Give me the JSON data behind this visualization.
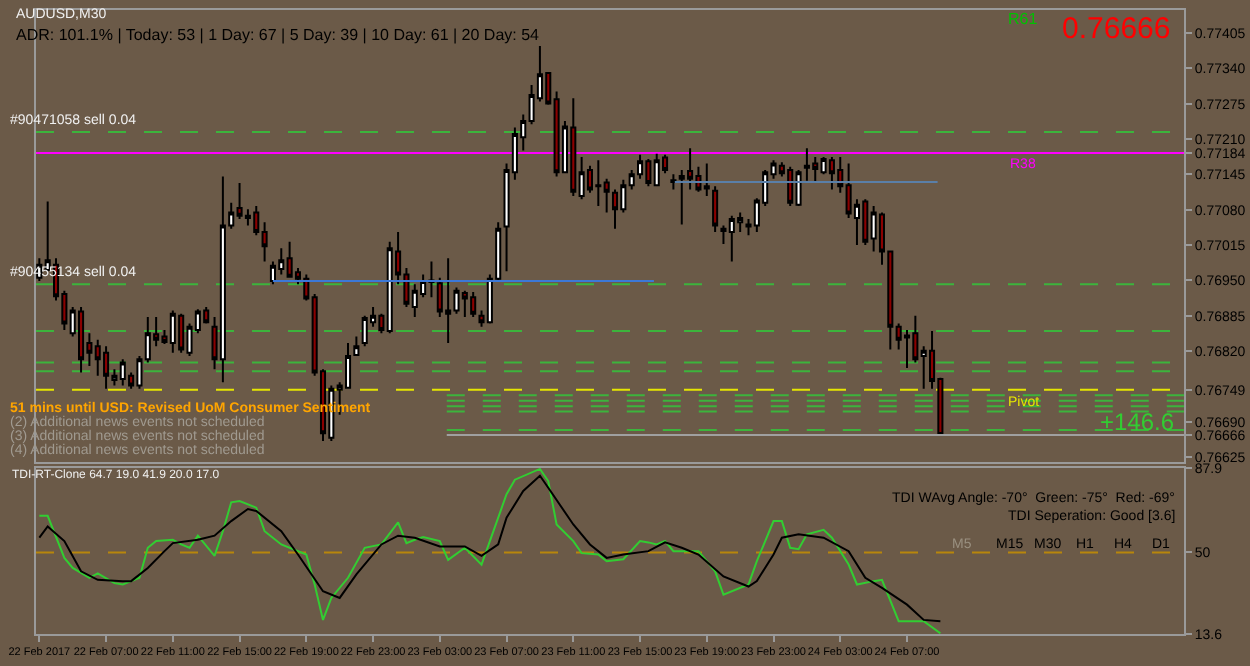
{
  "chart_data": [
    {
      "type": "candlestick",
      "title": "AUDUSD,M30",
      "subtitle": "ADR: 101.1% | Today: 53 | 1 Day: 67 | 5 Day: 39 | 10 Day: 61 | 20 Day: 54",
      "x": [
        "2017-02-22T03:00",
        "2017-02-22T03:30",
        "2017-02-22T04:00",
        "2017-02-22T04:30",
        "2017-02-22T05:00",
        "2017-02-22T05:30",
        "2017-02-22T06:00",
        "2017-02-22T06:30",
        "2017-02-22T07:00",
        "2017-02-22T07:30",
        "2017-02-22T08:00",
        "2017-02-22T08:30",
        "2017-02-22T09:00",
        "2017-02-22T09:30",
        "2017-02-22T10:00",
        "2017-02-22T10:30",
        "2017-02-22T11:00",
        "2017-02-22T11:30",
        "2017-02-22T12:00",
        "2017-02-22T12:30",
        "2017-02-22T13:00",
        "2017-02-22T13:30",
        "2017-02-22T14:00",
        "2017-02-22T14:30",
        "2017-02-22T15:00",
        "2017-02-22T15:30",
        "2017-02-22T16:00",
        "2017-02-22T16:30",
        "2017-02-22T17:00",
        "2017-02-22T17:30",
        "2017-02-22T18:00",
        "2017-02-22T18:30",
        "2017-02-22T19:00",
        "2017-02-22T19:30",
        "2017-02-22T20:00",
        "2017-02-22T20:30",
        "2017-02-22T21:00",
        "2017-02-22T21:30",
        "2017-02-22T22:00",
        "2017-02-22T22:30",
        "2017-02-22T23:00",
        "2017-02-22T23:30",
        "2017-02-23T00:00",
        "2017-02-23T00:30",
        "2017-02-23T01:00",
        "2017-02-23T01:30",
        "2017-02-23T02:00",
        "2017-02-23T02:30",
        "2017-02-23T03:00",
        "2017-02-23T03:30",
        "2017-02-23T04:00",
        "2017-02-23T04:30",
        "2017-02-23T05:00",
        "2017-02-23T05:30",
        "2017-02-23T06:00",
        "2017-02-23T06:30",
        "2017-02-23T07:00",
        "2017-02-23T07:30",
        "2017-02-23T08:00",
        "2017-02-23T08:30",
        "2017-02-23T09:00",
        "2017-02-23T09:30",
        "2017-02-23T10:00",
        "2017-02-23T10:30",
        "2017-02-23T11:00",
        "2017-02-23T11:30",
        "2017-02-23T12:00",
        "2017-02-23T12:30",
        "2017-02-23T13:00",
        "2017-02-23T13:30",
        "2017-02-23T14:00",
        "2017-02-23T14:30",
        "2017-02-23T15:00",
        "2017-02-23T15:30",
        "2017-02-23T16:00",
        "2017-02-23T16:30",
        "2017-02-23T17:00",
        "2017-02-23T17:30",
        "2017-02-23T18:00",
        "2017-02-23T18:30",
        "2017-02-23T19:00",
        "2017-02-23T19:30",
        "2017-02-23T20:00",
        "2017-02-23T20:30",
        "2017-02-23T21:00",
        "2017-02-23T21:30",
        "2017-02-23T22:00",
        "2017-02-23T22:30",
        "2017-02-23T23:00",
        "2017-02-23T23:30",
        "2017-02-24T00:00",
        "2017-02-24T00:30",
        "2017-02-24T01:00",
        "2017-02-24T01:30",
        "2017-02-24T02:00",
        "2017-02-24T02:30",
        "2017-02-24T03:00",
        "2017-02-24T03:30",
        "2017-02-24T04:00",
        "2017-02-24T04:30",
        "2017-02-24T05:00",
        "2017-02-24T05:30",
        "2017-02-24T06:00",
        "2017-02-24T06:30",
        "2017-02-24T07:00",
        "2017-02-24T07:30",
        "2017-02-24T08:00",
        "2017-02-24T08:30",
        "2017-02-24T09:00"
      ],
      "ohlc": [
        [
          0.76955,
          0.76991,
          0.76949,
          0.76979
        ],
        [
          0.76969,
          0.77095,
          0.76967,
          0.76987
        ],
        [
          0.76979,
          0.76991,
          0.76913,
          0.76921
        ],
        [
          0.76925,
          0.76931,
          0.76859,
          0.76871
        ],
        [
          0.76853,
          0.76901,
          0.76847,
          0.76895
        ],
        [
          0.76893,
          0.76901,
          0.76781,
          0.76805
        ],
        [
          0.76835,
          0.76853,
          0.76793,
          0.76817
        ],
        [
          0.76829,
          0.76841,
          0.76775,
          0.76805
        ],
        [
          0.76817,
          0.76829,
          0.76751,
          0.76775
        ],
        [
          0.76767,
          0.76787,
          0.76757,
          0.76775
        ],
        [
          0.76769,
          0.76805,
          0.76757,
          0.76799
        ],
        [
          0.76775,
          0.76781,
          0.76751,
          0.76757
        ],
        [
          0.76757,
          0.76811,
          0.76751,
          0.76805
        ],
        [
          0.76805,
          0.76883,
          0.76799,
          0.76853
        ],
        [
          0.76851,
          0.76883,
          0.76829,
          0.76841
        ],
        [
          0.76847,
          0.76859,
          0.76833,
          0.76837
        ],
        [
          0.76835,
          0.76895,
          0.76817,
          0.76889
        ],
        [
          0.76885,
          0.76889,
          0.76817,
          0.76823
        ],
        [
          0.76817,
          0.76871,
          0.76811,
          0.76865
        ],
        [
          0.76859,
          0.76897,
          0.76853,
          0.76893
        ],
        [
          0.76895,
          0.76901,
          0.76871,
          0.76873
        ],
        [
          0.76865,
          0.76883,
          0.76787,
          0.76805
        ],
        [
          0.76805,
          0.77141,
          0.76763,
          0.77051
        ],
        [
          0.77051,
          0.77093,
          0.77045,
          0.77075
        ],
        [
          0.77083,
          0.77129,
          0.77063,
          0.77069
        ],
        [
          0.77069,
          0.77081,
          0.77051,
          0.77065
        ],
        [
          0.77075,
          0.77087,
          0.77033,
          0.77039
        ],
        [
          0.77039,
          0.77057,
          0.76985,
          0.77013
        ],
        [
          0.76949,
          0.76985,
          0.76943,
          0.76977
        ],
        [
          0.76971,
          0.77009,
          0.76961,
          0.76987
        ],
        [
          0.76991,
          0.77021,
          0.76955,
          0.76957
        ],
        [
          0.76965,
          0.76973,
          0.76943,
          0.76953
        ],
        [
          0.76953,
          0.76961,
          0.76913,
          0.76917
        ],
        [
          0.76919,
          0.76925,
          0.76775,
          0.76781
        ],
        [
          0.76783,
          0.76787,
          0.76655,
          0.76669
        ],
        [
          0.76661,
          0.76757,
          0.76655,
          0.76751
        ],
        [
          0.76749,
          0.76763,
          0.76703,
          0.76757
        ],
        [
          0.76753,
          0.76835,
          0.76751,
          0.76811
        ],
        [
          0.76813,
          0.76847,
          0.76811,
          0.76829
        ],
        [
          0.76835,
          0.76885,
          0.76829,
          0.76881
        ],
        [
          0.76873,
          0.76901,
          0.76865,
          0.76885
        ],
        [
          0.76885,
          0.76889,
          0.76853,
          0.76859
        ],
        [
          0.76857,
          0.77021,
          0.76853,
          0.77009
        ],
        [
          0.77003,
          0.77039,
          0.76943,
          0.76961
        ],
        [
          0.76961,
          0.76973,
          0.76901,
          0.76907
        ],
        [
          0.76901,
          0.76943,
          0.76883,
          0.76931
        ],
        [
          0.76925,
          0.76961,
          0.76919,
          0.76949
        ],
        [
          0.76947,
          0.76985,
          0.76919,
          0.7695
        ],
        [
          0.76945,
          0.76955,
          0.76883,
          0.76893
        ],
        [
          0.76895,
          0.76991,
          0.76835,
          0.76889
        ],
        [
          0.76895,
          0.76937,
          0.76889,
          0.76931
        ],
        [
          0.76927,
          0.76931,
          0.76883,
          0.76917
        ],
        [
          0.76919,
          0.76929,
          0.76883,
          0.76889
        ],
        [
          0.76885,
          0.76895,
          0.76865,
          0.76873
        ],
        [
          0.76873,
          0.76961,
          0.76871,
          0.76953
        ],
        [
          0.76953,
          0.77057,
          0.76949,
          0.77045
        ],
        [
          0.77049,
          0.77165,
          0.76967,
          0.77153
        ],
        [
          0.77149,
          0.77231,
          0.77135,
          0.77219
        ],
        [
          0.77213,
          0.77255,
          0.77189,
          0.77243
        ],
        [
          0.77243,
          0.77309,
          0.77237,
          0.77291
        ],
        [
          0.77285,
          0.77381,
          0.77279,
          0.77329
        ],
        [
          0.77331,
          0.77333,
          0.77273,
          0.77275
        ],
        [
          0.77283,
          0.77297,
          0.77141,
          0.77149
        ],
        [
          0.77149,
          0.77243,
          0.77147,
          0.77233
        ],
        [
          0.77231,
          0.77285,
          0.77105,
          0.77113
        ],
        [
          0.77105,
          0.77177,
          0.77099,
          0.77149
        ],
        [
          0.77153,
          0.77161,
          0.77111,
          0.77117
        ],
        [
          0.77125,
          0.77171,
          0.77087,
          0.77123
        ],
        [
          0.7713,
          0.77137,
          0.77075,
          0.77113
        ],
        [
          0.77111,
          0.77117,
          0.77045,
          0.77081
        ],
        [
          0.77081,
          0.77135,
          0.77075,
          0.77125
        ],
        [
          0.77125,
          0.77153,
          0.77117,
          0.77145
        ],
        [
          0.77145,
          0.77181,
          0.77137,
          0.77169
        ],
        [
          0.77169,
          0.77173,
          0.77123,
          0.77129
        ],
        [
          0.77125,
          0.77183,
          0.77123,
          0.77171
        ],
        [
          0.77176,
          0.77181,
          0.77147,
          0.77153
        ],
        [
          0.77134,
          0.77145,
          0.77117,
          0.77131
        ],
        [
          0.77137,
          0.77153,
          0.77053,
          0.77142
        ],
        [
          0.77151,
          0.77193,
          0.77117,
          0.77137
        ],
        [
          0.77142,
          0.77159,
          0.77113,
          0.77117
        ],
        [
          0.77123,
          0.77165,
          0.77105,
          0.77119
        ],
        [
          0.77115,
          0.77123,
          0.77039,
          0.77051
        ],
        [
          0.77045,
          0.77051,
          0.77017,
          0.77041
        ],
        [
          0.77039,
          0.77069,
          0.76985,
          0.77063
        ],
        [
          0.77057,
          0.77075,
          0.77039,
          0.77065
        ],
        [
          0.77049,
          0.77063,
          0.77033,
          0.77053
        ],
        [
          0.77051,
          0.77101,
          0.77039,
          0.77097
        ],
        [
          0.77093,
          0.77153,
          0.77087,
          0.77149
        ],
        [
          0.77145,
          0.77171,
          0.77137,
          0.77165
        ],
        [
          0.77161,
          0.77167,
          0.77141,
          0.77147
        ],
        [
          0.77153,
          0.77159,
          0.77087,
          0.77093
        ],
        [
          0.77089,
          0.77153,
          0.77087,
          0.77149
        ],
        [
          0.77157,
          0.77193,
          0.77133,
          0.77161
        ],
        [
          0.77165,
          0.77177,
          0.77129,
          0.77155
        ],
        [
          0.77149,
          0.77177,
          0.77145,
          0.77173
        ],
        [
          0.77171,
          0.77177,
          0.77117,
          0.77147
        ],
        [
          0.77153,
          0.77177,
          0.77111,
          0.77123
        ],
        [
          0.77125,
          0.77165,
          0.77065,
          0.77073
        ],
        [
          0.77065,
          0.77099,
          0.77015,
          0.77089
        ],
        [
          0.77095,
          0.77099,
          0.77015,
          0.77021
        ],
        [
          0.77027,
          0.77087,
          0.77003,
          0.77075
        ],
        [
          0.77071,
          0.77075,
          0.76979,
          0.77003
        ],
        [
          0.77003,
          0.77005,
          0.76823,
          0.76865
        ],
        [
          0.76865,
          0.76871,
          0.76823,
          0.76841
        ],
        [
          0.76849,
          0.76859,
          0.76789,
          0.76845
        ],
        [
          0.76853,
          0.76885,
          0.76799,
          0.76805
        ],
        [
          0.76811,
          0.76829,
          0.76751,
          0.76821
        ],
        [
          0.76821,
          0.76857,
          0.76751,
          0.76765
        ],
        [
          0.76769,
          0.76771,
          0.76666,
          0.76666
        ]
      ],
      "series": [
        {
          "type": "line",
          "color": "#3c78d8",
          "line_style": "solid",
          "x": [
            "2017-02-22T17:00",
            "2017-02-23T15:50"
          ],
          "values": [
            0.76949,
            0.76949
          ]
        },
        {
          "type": "line",
          "color": "#5a7fa8",
          "line_style": "solid",
          "x": [
            "2017-02-23T17:05",
            "2017-02-24T08:50"
          ],
          "values": [
            0.77131,
            0.77131
          ]
        },
        {
          "type": "line",
          "color": "#3cb43c",
          "line_style": "dashed",
          "x": [
            "2017-02-23T03:25",
            "2017-02-24T23:36"
          ],
          "values": [
            0.76739,
            0.76739
          ]
        },
        {
          "type": "line",
          "color": "#3cb43c",
          "line_style": "dashed",
          "x": [
            "2017-02-23T03:25",
            "2017-02-24T23:36"
          ],
          "values": [
            0.76729,
            0.76729
          ]
        },
        {
          "type": "line",
          "color": "#3cb43c",
          "line_style": "dashed",
          "x": [
            "2017-02-23T03:25",
            "2017-02-24T23:36"
          ],
          "values": [
            0.76719,
            0.76719
          ]
        },
        {
          "type": "line",
          "color": "#3cb43c",
          "line_style": "dashed",
          "x": [
            "2017-02-23T03:25",
            "2017-02-24T23:36"
          ],
          "values": [
            0.76709,
            0.76709
          ]
        },
        {
          "type": "line",
          "color": "#3cb43c",
          "line_style": "dashed",
          "x": [
            "2017-02-23T03:25",
            "2017-02-24T23:36"
          ],
          "values": [
            0.76675,
            0.76675
          ]
        },
        {
          "type": "line",
          "color": "#a0a0a0",
          "line_style": "solid",
          "x": [
            "2017-02-23T03:25",
            "2017-02-24T23:36"
          ],
          "values": [
            0.76666,
            0.76666
          ]
        }
      ],
      "xlim": [
        "2017-02-22T02:48",
        "2017-02-24T23:36"
      ],
      "ylim": [
        0.76617,
        0.77447
      ],
      "yticks": [
        0.77405,
        {
          "value": 0.7734,
          "label": "0.77340"
        },
        0.77275,
        {
          "value": 0.7721,
          "label": "0.77210"
        },
        0.77184,
        0.77145,
        {
          "value": 0.7708,
          "label": "0.77080"
        },
        0.77015,
        {
          "value": 0.7695,
          "label": "0.76950"
        },
        0.76885,
        {
          "value": 0.7682,
          "label": "0.76820"
        },
        0.76749,
        {
          "value": 0.7669,
          "label": "0.76690"
        },
        0.76666,
        0.76625
      ],
      "tick_labels": "y",
      "ref_lines": [
        {
          "axis": "y",
          "value": 0.77223,
          "label": "#90471058 sell 0.04",
          "color": "#3cb43c",
          "line_style": "dashed"
        },
        {
          "axis": "y",
          "value": 0.77184,
          "label": "R38",
          "color": "#ff00ff",
          "line_style": "solid"
        },
        {
          "axis": "y",
          "value": 0.76943,
          "label": "#90455134 sell 0.04",
          "color": "#3cb43c",
          "line_style": "dashed"
        },
        {
          "axis": "y",
          "value": 0.76857,
          "color": "#3cb43c",
          "line_style": "dashed"
        },
        {
          "axis": "y",
          "value": 0.76799,
          "color": "#3cb43c",
          "line_style": "dashed"
        },
        {
          "axis": "y",
          "value": 0.76783,
          "color": "#3cb43c",
          "line_style": "dashed"
        },
        {
          "axis": "y",
          "value": 0.76749,
          "label": "Pivot",
          "color": "#e6e600",
          "line_style": "dashed"
        }
      ],
      "annotations": [
        "0.76666",
        "R61",
        "+146.6",
        "51 mins until USD: Revised UoM Consumer Sentiment",
        "(2) Additional news events not scheduled",
        "(3) Additional news events not scheduled",
        "(4) Additional news events not scheduled"
      ]
    },
    {
      "type": "line",
      "title": "TDI-RT-Clone 64.7 19.0 41.9 20.0 17.0",
      "series": [
        {
          "color": "#32cd32",
          "x": [
            "2017-02-22T03:00",
            "2017-02-22T03:30",
            "2017-02-22T04:30",
            "2017-02-22T05:00",
            "2017-02-22T06:00",
            "2017-02-22T06:30",
            "2017-02-22T07:30",
            "2017-02-22T08:00",
            "2017-02-22T09:00",
            "2017-02-22T09:30",
            "2017-02-22T10:00",
            "2017-02-22T11:00",
            "2017-02-22T11:30",
            "2017-02-22T12:00",
            "2017-02-22T12:30",
            "2017-02-22T13:30",
            "2017-02-22T14:00",
            "2017-02-22T14:30",
            "2017-02-22T15:00",
            "2017-02-22T16:00",
            "2017-02-22T16:30",
            "2017-02-22T17:30",
            "2017-02-22T19:00",
            "2017-02-22T19:30",
            "2017-02-22T20:00",
            "2017-02-22T20:30",
            "2017-02-22T21:30",
            "2017-02-22T22:30",
            "2017-02-22T23:30",
            "2017-02-23T00:30",
            "2017-02-23T01:00",
            "2017-02-23T01:30",
            "2017-02-23T02:00",
            "2017-02-23T03:00",
            "2017-02-23T03:30",
            "2017-02-23T04:30",
            "2017-02-23T05:30",
            "2017-02-23T06:00",
            "2017-02-23T07:00",
            "2017-02-23T07:30",
            "2017-02-23T09:00",
            "2017-02-23T09:30",
            "2017-02-23T10:00",
            "2017-02-23T11:00",
            "2017-02-23T11:30",
            "2017-02-23T12:30",
            "2017-02-23T13:00",
            "2017-02-23T14:00",
            "2017-02-23T15:00",
            "2017-02-23T15:30",
            "2017-02-23T16:00",
            "2017-02-23T16:30",
            "2017-02-23T17:00",
            "2017-02-23T18:30",
            "2017-02-23T19:30",
            "2017-02-23T20:00",
            "2017-02-23T21:30",
            "2017-02-23T22:00",
            "2017-02-23T23:00",
            "2017-02-23T23:30",
            "2017-02-24T00:00",
            "2017-02-24T00:30",
            "2017-02-24T01:00",
            "2017-02-24T02:00",
            "2017-02-24T02:30",
            "2017-02-24T03:30",
            "2017-02-24T04:00",
            "2017-02-24T05:00",
            "2017-02-24T05:30",
            "2017-02-24T06:30",
            "2017-02-24T08:00",
            "2017-02-24T09:00"
          ],
          "values": [
            66.4,
            66.4,
            47.6,
            43.1,
            38.7,
            40.7,
            36.3,
            35.7,
            38.7,
            52.1,
            55.1,
            55.7,
            53.6,
            52.1,
            57.5,
            48.5,
            59.5,
            72.4,
            73.0,
            70.0,
            59.5,
            53.6,
            49.1,
            35.7,
            19.9,
            29.7,
            38.7,
            52.1,
            53.6,
            63.4,
            54.2,
            55.7,
            56.9,
            55.1,
            46.7,
            52.1,
            44.6,
            55.1,
            76.0,
            82.5,
            87.3,
            81.9,
            62.5,
            55.1,
            49.7,
            49.1,
            46.1,
            47.0,
            55.1,
            54.5,
            53.6,
            55.1,
            50.6,
            50.6,
            41.6,
            31.2,
            35.7,
            46.1,
            64.0,
            64.0,
            52.1,
            51.5,
            58.1,
            60.1,
            56.6,
            44.6,
            35.7,
            37.2,
            37.8,
            19.3,
            19.3,
            13.9
          ]
        },
        {
          "color": "#000000",
          "x": [
            "2017-02-22T03:00",
            "2017-02-22T03:30",
            "2017-02-22T04:30",
            "2017-02-22T05:30",
            "2017-02-22T06:30",
            "2017-02-22T08:00",
            "2017-02-22T08:30",
            "2017-02-22T09:30",
            "2017-02-22T10:30",
            "2017-02-22T11:00",
            "2017-02-22T12:30",
            "2017-02-22T13:30",
            "2017-02-22T14:30",
            "2017-02-22T15:30",
            "2017-02-22T16:00",
            "2017-02-22T17:30",
            "2017-02-22T18:30",
            "2017-02-22T20:00",
            "2017-02-22T21:00",
            "2017-02-22T22:00",
            "2017-02-22T23:30",
            "2017-02-23T00:30",
            "2017-02-23T01:30",
            "2017-02-23T03:00",
            "2017-02-23T04:30",
            "2017-02-23T05:30",
            "2017-02-23T06:30",
            "2017-02-23T07:00",
            "2017-02-23T08:00",
            "2017-02-23T09:00",
            "2017-02-23T09:30",
            "2017-02-23T11:00",
            "2017-02-23T12:00",
            "2017-02-23T13:00",
            "2017-02-23T14:00",
            "2017-02-23T15:30",
            "2017-02-23T16:30",
            "2017-02-23T17:30",
            "2017-02-23T18:30",
            "2017-02-23T20:00",
            "2017-02-23T21:30",
            "2017-02-23T22:00",
            "2017-02-23T23:00",
            "2017-02-23T23:30",
            "2017-02-24T00:30",
            "2017-02-24T02:00",
            "2017-02-24T03:30",
            "2017-02-24T04:30",
            "2017-02-24T05:30",
            "2017-02-24T07:00",
            "2017-02-24T08:00",
            "2017-02-24T09:00"
          ],
          "values": [
            56.6,
            61.6,
            55.1,
            41.6,
            37.8,
            37.2,
            37.2,
            43.1,
            50.6,
            54.2,
            55.7,
            57.5,
            64.0,
            69.4,
            68.5,
            59.5,
            49.1,
            32.7,
            29.7,
            40.2,
            53.6,
            57.5,
            56.6,
            52.7,
            52.7,
            48.5,
            53.6,
            65.5,
            77.5,
            84.3,
            78.9,
            62.5,
            53.6,
            47.6,
            49.1,
            50.6,
            54.5,
            52.1,
            49.1,
            39.3,
            34.8,
            37.2,
            49.1,
            56.6,
            58.1,
            56.6,
            50.6,
            38.7,
            34.2,
            26.7,
            19.9,
            19.3
          ]
        }
      ],
      "xlim": [
        "2017-02-22T02:48",
        "2017-02-24T23:36"
      ],
      "xticks": [
        {
          "value": "2017-02-22T03:00",
          "label": "22 Feb 2017"
        },
        {
          "value": "2017-02-22T07:00",
          "label": "22 Feb 07:00"
        },
        {
          "value": "2017-02-22T11:00",
          "label": "22 Feb 11:00"
        },
        {
          "value": "2017-02-22T15:00",
          "label": "22 Feb 15:00"
        },
        {
          "value": "2017-02-22T19:00",
          "label": "22 Feb 19:00"
        },
        {
          "value": "2017-02-22T23:00",
          "label": "22 Feb 23:00"
        },
        {
          "value": "2017-02-23T03:00",
          "label": "23 Feb 03:00"
        },
        {
          "value": "2017-02-23T07:00",
          "label": "23 Feb 07:00"
        },
        {
          "value": "2017-02-23T11:00",
          "label": "23 Feb 11:00"
        },
        {
          "value": "2017-02-23T15:00",
          "label": "23 Feb 15:00"
        },
        {
          "value": "2017-02-23T19:00",
          "label": "23 Feb 19:00"
        },
        {
          "value": "2017-02-23T23:00",
          "label": "23 Feb 23:00"
        },
        {
          "value": "2017-02-24T03:00",
          "label": "24 Feb 03:00"
        },
        {
          "value": "2017-02-24T07:00",
          "label": "24 Feb 07:00"
        }
      ],
      "ylim": [
        13.6,
        87.9
      ],
      "yticks": [
        87.9,
        50,
        13.6
      ],
      "ref_lines": [
        {
          "axis": "y",
          "value": 50,
          "color": "#b8860b",
          "line_style": "dashed"
        }
      ],
      "annotations": [
        "TDI WAvg Angle: -70°  Green: -75°  Red: -69°",
        "TDI Seperation: Good [3.6]",
        "M5",
        "M15",
        "M30",
        "H1",
        "H4",
        "D1"
      ]
    }
  ]
}
